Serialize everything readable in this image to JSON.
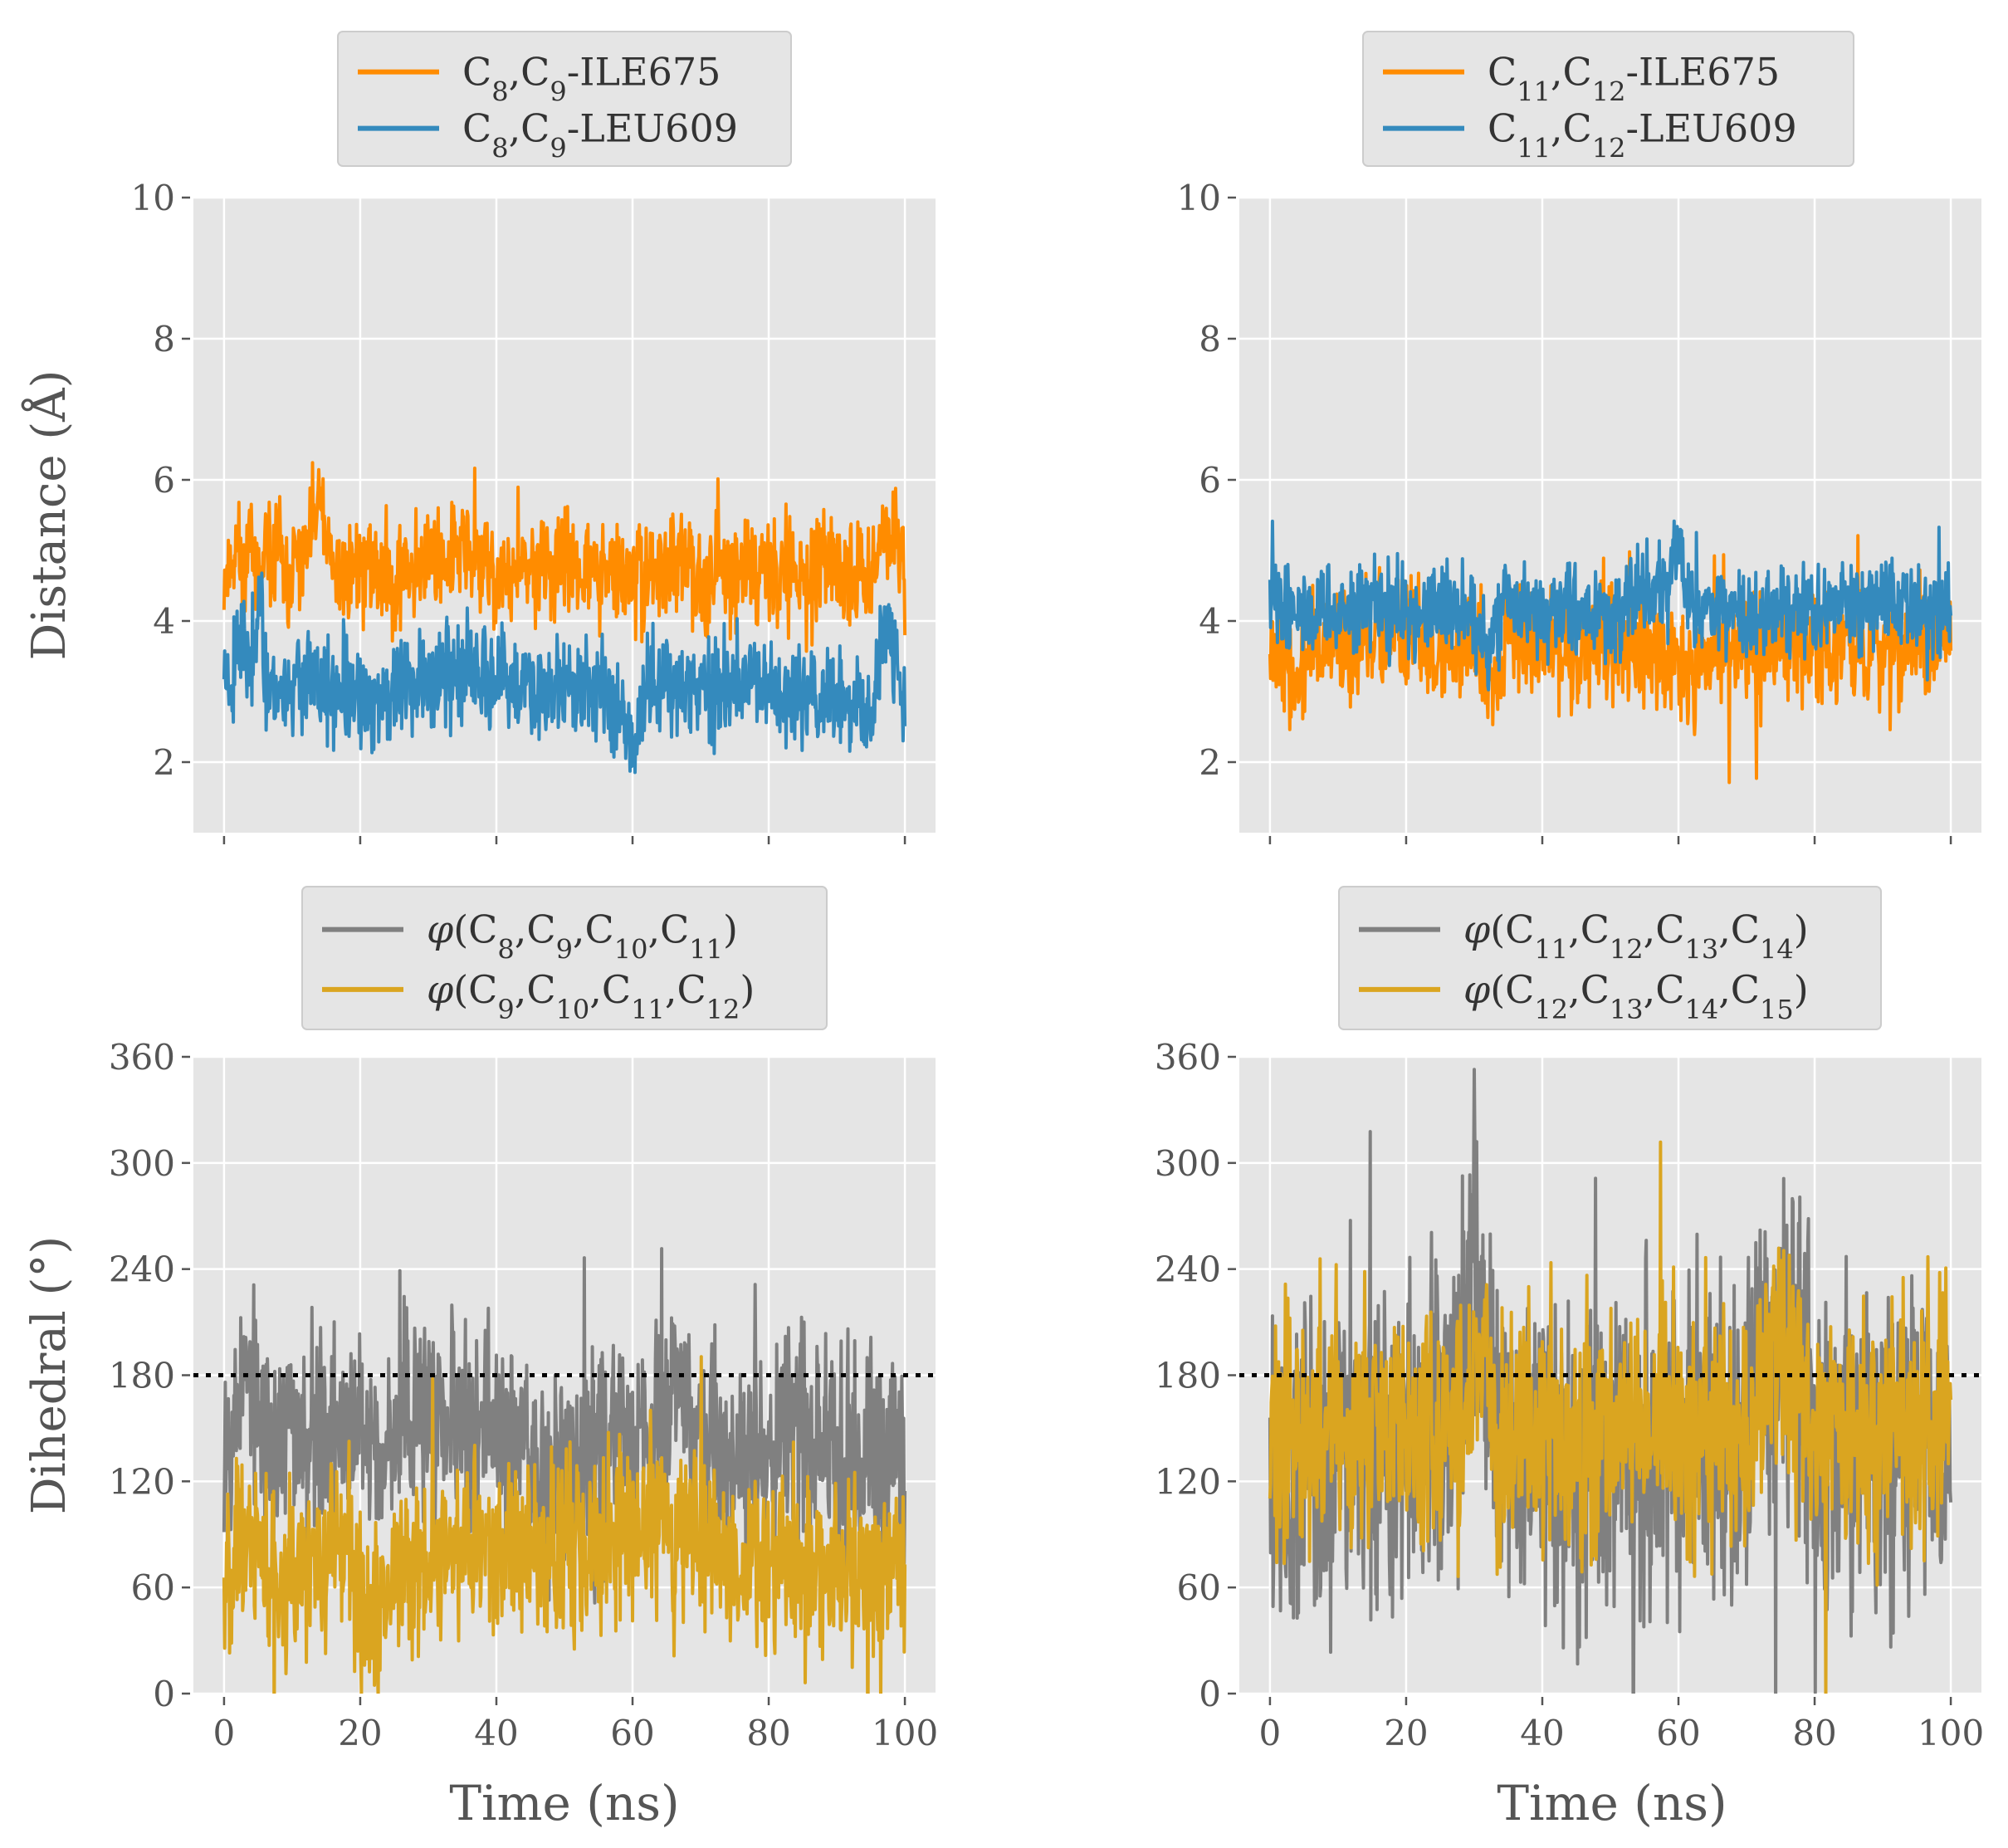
{
  "figure": {
    "x_axis_label": "Time (ns)",
    "colors": {
      "orange": "#ff8c00",
      "blue": "#348abd",
      "gray": "#808080",
      "gold": "#daa520",
      "panel_bg": "#e5e5e5",
      "grid": "#ffffff",
      "tick_text": "#555555",
      "legend_bg": "#e5e5e5",
      "legend_border": "#cccccc"
    }
  },
  "chart_data": [
    {
      "id": "p1",
      "type": "line",
      "ylabel": "Distance (Å)",
      "xlim": [
        -4.5,
        104.5
      ],
      "ylim": [
        1,
        10
      ],
      "xticks": [
        0,
        20,
        40,
        60,
        80,
        100
      ],
      "yticks": [
        2,
        4,
        6,
        8,
        10
      ],
      "show_xtick_labels": false,
      "show_ytick_labels": true,
      "series": [
        {
          "name": "C8,C9-ILE675",
          "name_parts": [
            [
              "C",
              ""
            ],
            [
              "8",
              "sub"
            ],
            [
              ",C",
              ""
            ],
            [
              "9",
              "sub"
            ],
            [
              "-ILE675",
              ""
            ]
          ],
          "color": "#ff8c00",
          "x": [
            0,
            1,
            2,
            3,
            4,
            5,
            6,
            7,
            8,
            9,
            10,
            12,
            14,
            16,
            18,
            20,
            25,
            30,
            35,
            40,
            45,
            50,
            55,
            60,
            65,
            70,
            75,
            80,
            85,
            90,
            95,
            98,
            100
          ],
          "y": [
            4.6,
            4.8,
            5.1,
            4.5,
            5.6,
            4.3,
            4.9,
            4.7,
            5.3,
            4.2,
            4.8,
            4.9,
            5.7,
            4.6,
            4.7,
            4.8,
            4.6,
            4.9,
            5.0,
            4.6,
            4.7,
            4.8,
            4.7,
            4.6,
            4.8,
            4.7,
            4.7,
            4.8,
            4.6,
            4.7,
            4.7,
            5.5,
            4.5
          ],
          "band": 0.35,
          "seed": 11
        },
        {
          "name": "C8,C9-LEU609",
          "name_parts": [
            [
              "C",
              ""
            ],
            [
              "8",
              "sub"
            ],
            [
              ",C",
              ""
            ],
            [
              "9",
              "sub"
            ],
            [
              "-LEU609",
              ""
            ]
          ],
          "color": "#348abd",
          "x": [
            0,
            1,
            2,
            3,
            4,
            5,
            6,
            8,
            10,
            12,
            14,
            16,
            18,
            20,
            25,
            30,
            35,
            40,
            45,
            50,
            55,
            58,
            60,
            62,
            65,
            70,
            75,
            80,
            85,
            90,
            93,
            95,
            97,
            99,
            100
          ],
          "y": [
            3.4,
            3.1,
            3.9,
            3.5,
            3.3,
            4.6,
            3.2,
            3.0,
            3.1,
            3.2,
            3.0,
            2.9,
            3.0,
            2.8,
            3.0,
            3.2,
            3.3,
            3.1,
            3.0,
            3.1,
            3.0,
            2.9,
            2.2,
            3.1,
            3.2,
            3.0,
            3.1,
            3.0,
            3.0,
            2.9,
            2.7,
            2.6,
            4.0,
            3.3,
            2.8
          ],
          "band": 0.35,
          "seed": 23
        }
      ]
    },
    {
      "id": "p2",
      "type": "line",
      "ylabel": "",
      "xlim": [
        -4.5,
        104.5
      ],
      "ylim": [
        1,
        10
      ],
      "xticks": [
        0,
        20,
        40,
        60,
        80,
        100
      ],
      "yticks": [
        2,
        4,
        6,
        8,
        10
      ],
      "show_xtick_labels": false,
      "show_ytick_labels": true,
      "series": [
        {
          "name": "C11,C12-ILE675",
          "name_parts": [
            [
              "C",
              ""
            ],
            [
              "11",
              "sub"
            ],
            [
              ",C",
              ""
            ],
            [
              "12",
              "sub"
            ],
            [
              "-ILE675",
              ""
            ]
          ],
          "color": "#ff8c00",
          "x": [
            0,
            2,
            4,
            6,
            8,
            10,
            15,
            20,
            25,
            30,
            33,
            35,
            40,
            45,
            50,
            55,
            60,
            61,
            65,
            70,
            75,
            80,
            85,
            90,
            95,
            100
          ],
          "y": [
            3.9,
            3.6,
            3.0,
            3.7,
            3.5,
            3.8,
            3.7,
            3.8,
            3.6,
            3.7,
            3.2,
            3.8,
            3.7,
            3.6,
            3.7,
            3.6,
            3.4,
            3.2,
            3.7,
            3.6,
            3.7,
            3.6,
            3.7,
            3.6,
            3.7,
            3.5
          ],
          "band": 0.4,
          "seed": 37
        },
        {
          "name": "C11,C12-LEU609",
          "name_parts": [
            [
              "C",
              ""
            ],
            [
              "11",
              "sub"
            ],
            [
              ",C",
              ""
            ],
            [
              "12",
              "sub"
            ],
            [
              "-LEU609",
              ""
            ]
          ],
          "color": "#348abd",
          "x": [
            0,
            2,
            4,
            6,
            8,
            10,
            15,
            20,
            25,
            30,
            32,
            33,
            35,
            40,
            45,
            50,
            55,
            58,
            60,
            61,
            62,
            65,
            70,
            75,
            80,
            85,
            90,
            95,
            100
          ],
          "y": [
            4.2,
            4.3,
            4.2,
            4.1,
            4.2,
            4.1,
            4.2,
            4.1,
            4.2,
            4.1,
            3.4,
            4.0,
            4.2,
            4.1,
            4.2,
            4.1,
            4.3,
            4.5,
            5.1,
            4.4,
            4.1,
            4.2,
            4.1,
            4.2,
            4.1,
            4.2,
            4.3,
            4.2,
            4.1
          ],
          "band": 0.3,
          "seed": 41
        }
      ]
    },
    {
      "id": "p3",
      "type": "line",
      "ylabel": "Dihedral (°)",
      "xlim": [
        -4.5,
        104.5
      ],
      "ylim": [
        0,
        360
      ],
      "xticks": [
        0,
        20,
        40,
        60,
        80,
        100
      ],
      "yticks": [
        0,
        60,
        120,
        180,
        240,
        300,
        360
      ],
      "show_xtick_labels": true,
      "show_ytick_labels": true,
      "reference_line": 180,
      "series": [
        {
          "name": "φ(C8,C9,C10,C11)",
          "name_parts": [
            [
              "φ",
              "it"
            ],
            [
              "(C",
              ""
            ],
            [
              "8",
              "sub"
            ],
            [
              ",C",
              ""
            ],
            [
              "9",
              "sub"
            ],
            [
              ",C",
              ""
            ],
            [
              "10",
              "sub"
            ],
            [
              ",C",
              ""
            ],
            [
              "11",
              "sub"
            ],
            [
              ")",
              ""
            ]
          ],
          "color": "#808080",
          "x": [
            0,
            2,
            3,
            5,
            8,
            10,
            15,
            20,
            25,
            30,
            35,
            40,
            45,
            47,
            50,
            55,
            60,
            63,
            65,
            66,
            70,
            75,
            80,
            85,
            90,
            95,
            100
          ],
          "y": [
            150,
            165,
            185,
            150,
            140,
            150,
            150,
            145,
            150,
            160,
            150,
            150,
            140,
            125,
            135,
            140,
            145,
            155,
            150,
            190,
            140,
            135,
            140,
            145,
            140,
            140,
            140
          ],
          "band": 28,
          "seed": 53
        },
        {
          "name": "φ(C9,C10,C11,C12)",
          "name_parts": [
            [
              "φ",
              "it"
            ],
            [
              "(C",
              ""
            ],
            [
              "9",
              "sub"
            ],
            [
              ",C",
              ""
            ],
            [
              "10",
              "sub"
            ],
            [
              ",C",
              ""
            ],
            [
              "11",
              "sub"
            ],
            [
              ",C",
              ""
            ],
            [
              "12",
              "sub"
            ],
            [
              ")",
              ""
            ]
          ],
          "color": "#daa520",
          "x": [
            0,
            2,
            4,
            6,
            8,
            10,
            15,
            20,
            21,
            25,
            30,
            35,
            40,
            45,
            50,
            55,
            58,
            60,
            62,
            65,
            66,
            70,
            75,
            80,
            85,
            90,
            95,
            100
          ],
          "y": [
            75,
            80,
            90,
            75,
            70,
            75,
            80,
            75,
            40,
            75,
            80,
            80,
            85,
            80,
            85,
            80,
            95,
            100,
            90,
            110,
            85,
            90,
            75,
            70,
            75,
            75,
            70,
            70
          ],
          "band": 25,
          "seed": 67
        }
      ]
    },
    {
      "id": "p4",
      "type": "line",
      "ylabel": "",
      "xlim": [
        -4.5,
        104.5
      ],
      "ylim": [
        0,
        360
      ],
      "xticks": [
        0,
        20,
        40,
        60,
        80,
        100
      ],
      "yticks": [
        0,
        60,
        120,
        180,
        240,
        300,
        360
      ],
      "show_xtick_labels": true,
      "show_ytick_labels": true,
      "reference_line": 180,
      "series": [
        {
          "name": "φ(C11,C12,C13,C14)",
          "name_parts": [
            [
              "φ",
              "it"
            ],
            [
              "(C",
              ""
            ],
            [
              "11",
              "sub"
            ],
            [
              ",C",
              ""
            ],
            [
              "12",
              "sub"
            ],
            [
              ",C",
              ""
            ],
            [
              "13",
              "sub"
            ],
            [
              ",C",
              ""
            ],
            [
              "14",
              "sub"
            ],
            [
              ")",
              ""
            ]
          ],
          "color": "#808080",
          "x": [
            0,
            2,
            4,
            6,
            8,
            10,
            15,
            20,
            25,
            28,
            30,
            31,
            33,
            35,
            40,
            45,
            50,
            55,
            60,
            65,
            70,
            72,
            75,
            78,
            80,
            85,
            90,
            95,
            100
          ],
          "y": [
            145,
            130,
            110,
            140,
            120,
            140,
            135,
            140,
            150,
            170,
            260,
            200,
            140,
            135,
            140,
            130,
            140,
            145,
            150,
            140,
            150,
            190,
            200,
            180,
            150,
            140,
            145,
            140,
            140
          ],
          "band": 45,
          "seed": 79
        },
        {
          "name": "φ(C12,C13,C14,C15)",
          "name_parts": [
            [
              "φ",
              "it"
            ],
            [
              "(C",
              ""
            ],
            [
              "12",
              "sub"
            ],
            [
              ",C",
              ""
            ],
            [
              "13",
              "sub"
            ],
            [
              ",C",
              ""
            ],
            [
              "14",
              "sub"
            ],
            [
              ",C",
              ""
            ],
            [
              "15",
              "sub"
            ],
            [
              ")",
              ""
            ]
          ],
          "color": "#daa520",
          "x": [
            0,
            2,
            4,
            6,
            8,
            10,
            15,
            20,
            25,
            30,
            31,
            33,
            35,
            40,
            45,
            50,
            55,
            60,
            65,
            70,
            73,
            75,
            77,
            80,
            85,
            90,
            95,
            100
          ],
          "y": [
            150,
            160,
            150,
            145,
            150,
            145,
            150,
            148,
            150,
            155,
            210,
            150,
            145,
            150,
            145,
            150,
            150,
            150,
            145,
            150,
            180,
            200,
            190,
            155,
            150,
            148,
            150,
            150
          ],
          "band": 35,
          "seed": 91
        }
      ]
    }
  ]
}
